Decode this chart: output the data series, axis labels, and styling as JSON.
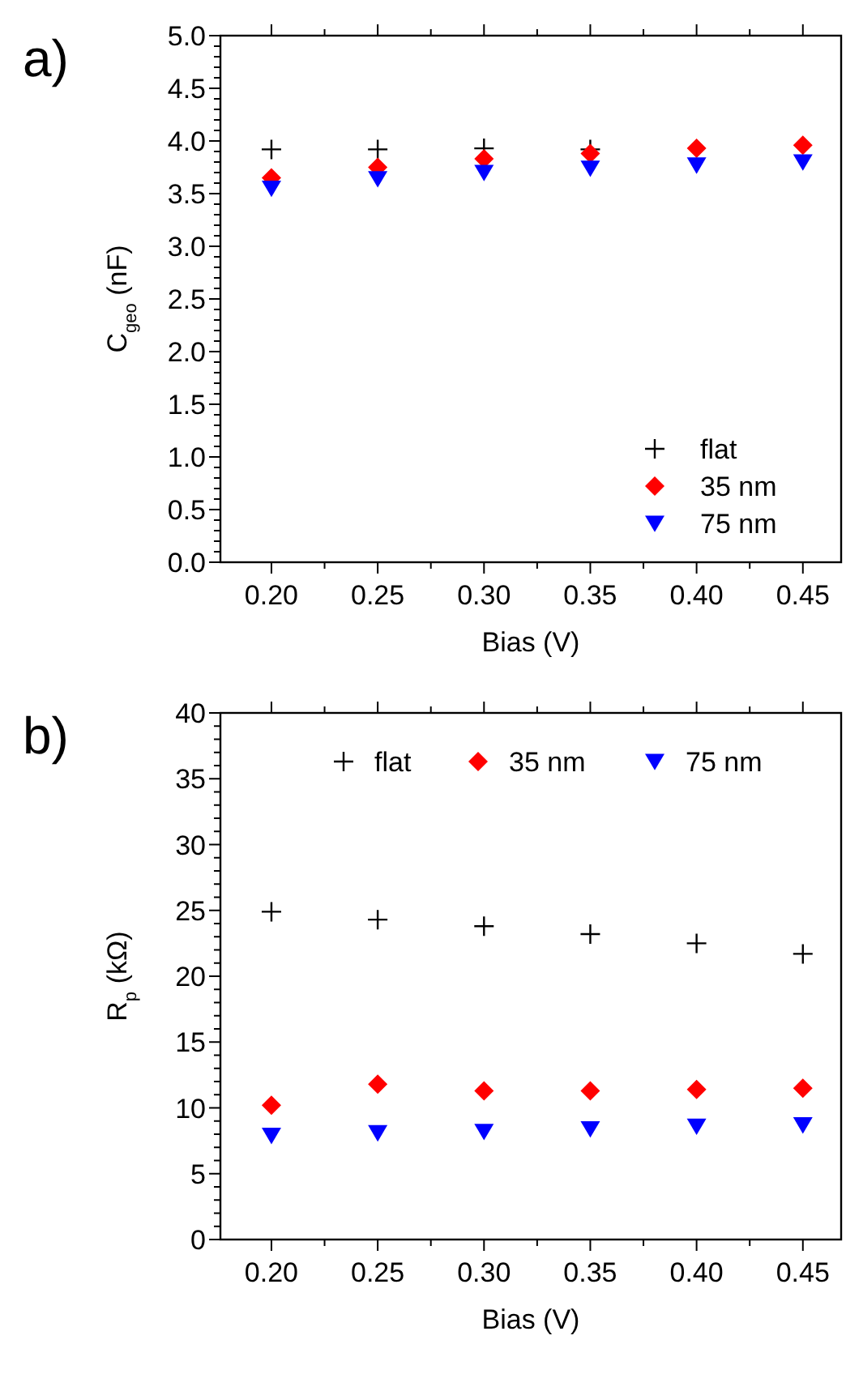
{
  "chart_data": [
    {
      "type": "scatter",
      "annotations": [
        "a)"
      ],
      "xlabel": "Bias (V)",
      "ylabel": "C$_{geo}$ (nF)",
      "x": [
        0.2,
        0.25,
        0.3,
        0.35,
        0.4,
        0.45
      ],
      "xlim": [
        0.176,
        0.468
      ],
      "xticks": [
        {
          "value": 0.2,
          "label": "0.20"
        },
        {
          "value": 0.25,
          "label": "0.25"
        },
        {
          "value": 0.3,
          "label": "0.30"
        },
        {
          "value": 0.35,
          "label": "0.35"
        },
        {
          "value": 0.4,
          "label": "0.40"
        },
        {
          "value": 0.45,
          "label": "0.45"
        }
      ],
      "ylim": [
        0,
        5
      ],
      "yticks": [
        {
          "value": 0,
          "label": "0.0"
        },
        {
          "value": 0.5,
          "label": "0.5"
        },
        {
          "value": 1,
          "label": "1.0"
        },
        {
          "value": 1.5,
          "label": "1.5"
        },
        {
          "value": 2,
          "label": "2.0"
        },
        {
          "value": 2.5,
          "label": "2.5"
        },
        {
          "value": 3,
          "label": "3.0"
        },
        {
          "value": 3.5,
          "label": "3.5"
        },
        {
          "value": 4,
          "label": "4.0"
        },
        {
          "value": 4.5,
          "label": "4.5"
        },
        {
          "value": 5,
          "label": "5.0"
        }
      ],
      "legend": "bottom right",
      "grid": false,
      "series": [
        {
          "name": "flat",
          "color": "#000000",
          "marker": "cross",
          "values": [
            3.92,
            3.92,
            3.93,
            3.92,
            null,
            null
          ]
        },
        {
          "name": "35 nm",
          "color": "#ff0000",
          "marker": "diamond",
          "values": [
            3.65,
            3.75,
            3.83,
            3.88,
            3.93,
            3.96
          ]
        },
        {
          "name": "75 nm",
          "color": "#0000ff",
          "marker": "triangle",
          "values": [
            3.55,
            3.64,
            3.7,
            3.74,
            3.77,
            3.8
          ]
        }
      ]
    },
    {
      "type": "scatter",
      "annotations": [
        "b)"
      ],
      "xlabel": "Bias (V)",
      "ylabel": "R$_{p}$ (kΩ)",
      "x": [
        0.2,
        0.25,
        0.3,
        0.35,
        0.4,
        0.45
      ],
      "xlim": [
        0.176,
        0.468
      ],
      "xticks": [
        {
          "value": 0.2,
          "label": "0.20"
        },
        {
          "value": 0.25,
          "label": "0.25"
        },
        {
          "value": 0.3,
          "label": "0.30"
        },
        {
          "value": 0.35,
          "label": "0.35"
        },
        {
          "value": 0.4,
          "label": "0.40"
        },
        {
          "value": 0.45,
          "label": "0.45"
        }
      ],
      "ylim": [
        0,
        40
      ],
      "yticks": [
        0,
        5,
        10,
        15,
        20,
        25,
        30,
        35,
        40
      ],
      "legend": "top",
      "grid": false,
      "series": [
        {
          "name": "flat",
          "color": "#000000",
          "marker": "cross",
          "values": [
            24.9,
            24.3,
            23.8,
            23.2,
            22.5,
            21.7
          ]
        },
        {
          "name": "35 nm",
          "color": "#ff0000",
          "marker": "diamond",
          "values": [
            10.2,
            11.8,
            11.3,
            11.3,
            11.4,
            11.5
          ]
        },
        {
          "name": "75 nm",
          "color": "#0000ff",
          "marker": "triangle",
          "values": [
            7.9,
            8.1,
            8.2,
            8.4,
            8.6,
            8.7
          ]
        }
      ]
    }
  ]
}
